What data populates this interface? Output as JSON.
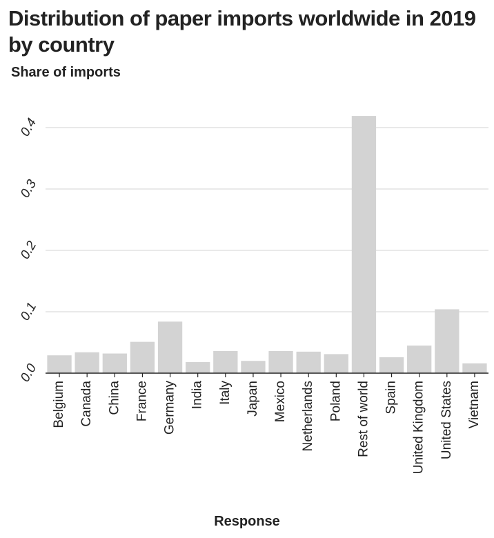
{
  "chart_data": {
    "type": "bar",
    "title": "Distribution of paper imports worldwide in 2019 by country",
    "ylabel": "Share of imports",
    "xlabel": "Response",
    "categories": [
      "Belgium",
      "Canada",
      "China",
      "France",
      "Germany",
      "India",
      "Italy",
      "Japan",
      "Mexico",
      "Netherlands",
      "Poland",
      "Rest of world",
      "Spain",
      "United Kingdom",
      "United States",
      "Vietnam"
    ],
    "values": [
      0.029,
      0.034,
      0.032,
      0.051,
      0.084,
      0.018,
      0.036,
      0.02,
      0.036,
      0.035,
      0.031,
      0.419,
      0.026,
      0.045,
      0.104,
      0.016
    ],
    "ylim": [
      0,
      0.4
    ],
    "yticks": [
      "0.0",
      "0.1",
      "0.2",
      "0.3",
      "0.4"
    ],
    "grid": true,
    "bar_color": "#d3d3d3",
    "grid_color": "#dcdcdc",
    "axis_color": "#222222"
  }
}
